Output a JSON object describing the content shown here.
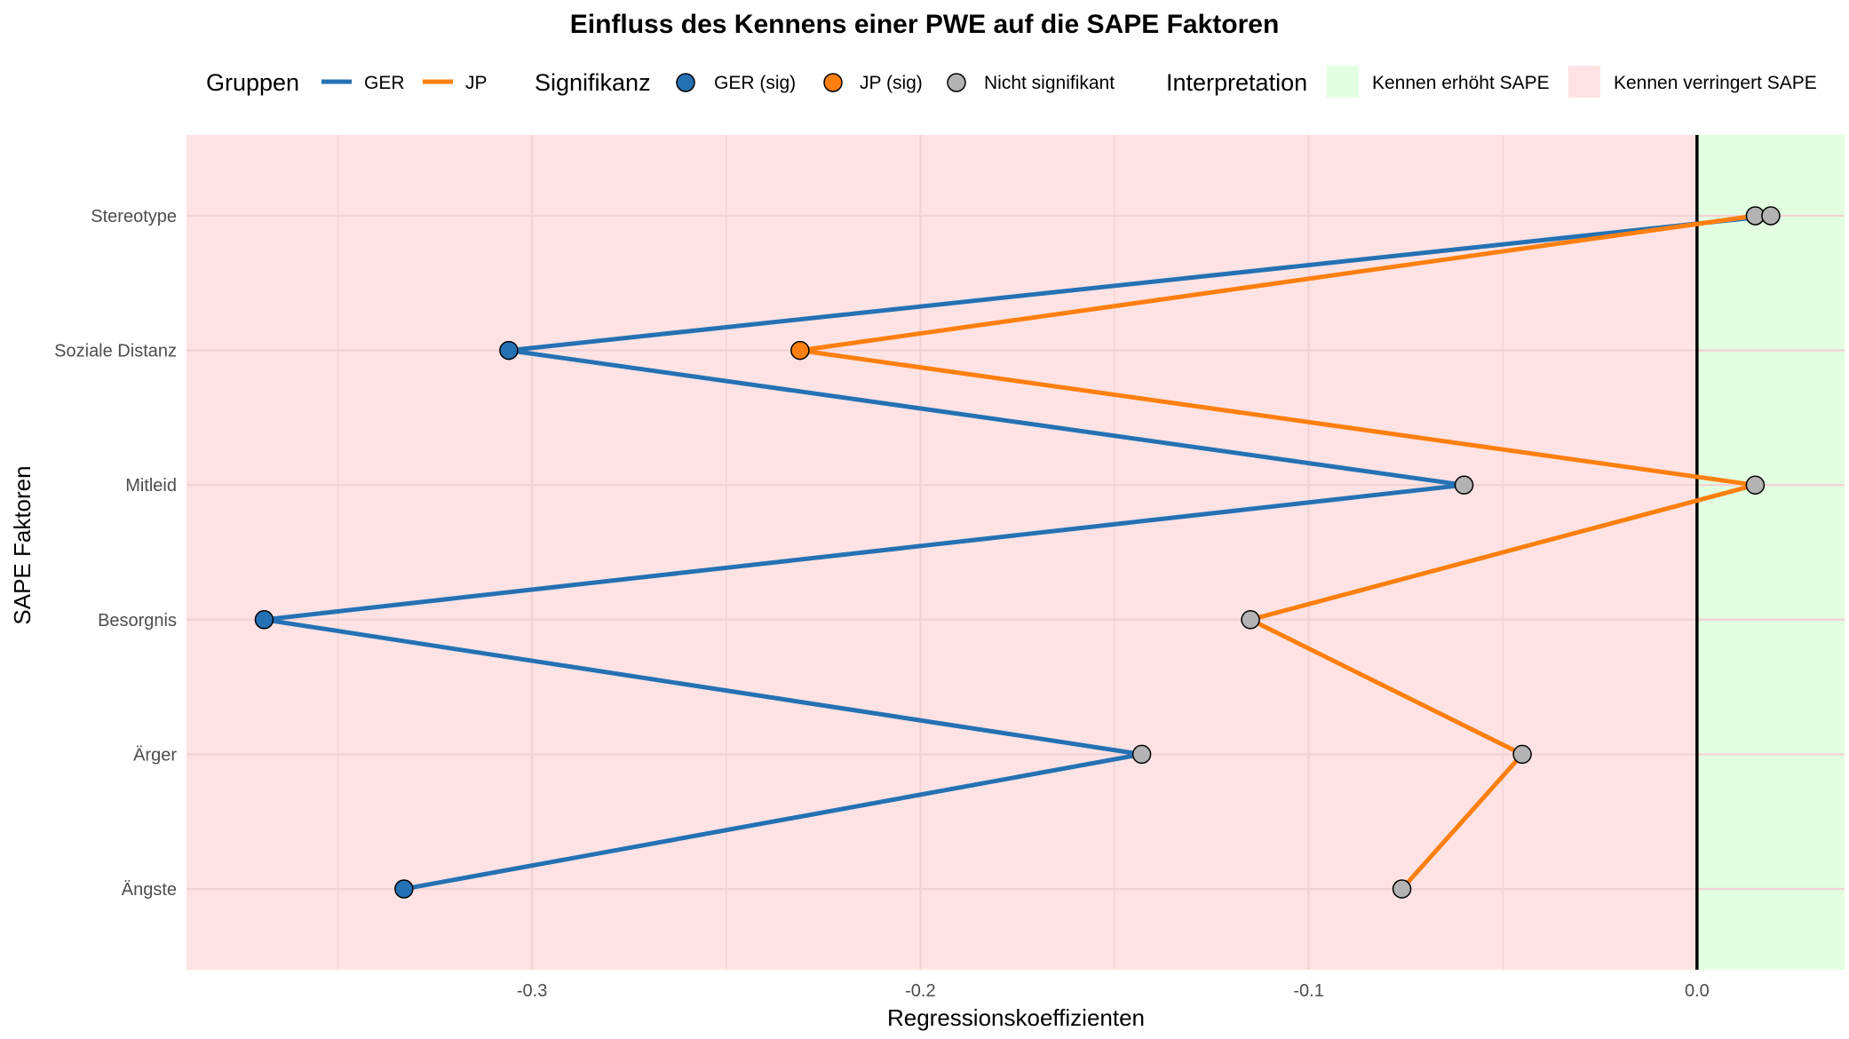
{
  "chart_data": {
    "type": "line",
    "title": "Einfluss des Kennens einer PWE auf die SAPE Faktoren",
    "xlabel": "Regressionskoeffizienten",
    "ylabel": "SAPE Faktoren",
    "xlim": [
      -0.389,
      0.038
    ],
    "x_ticks": [
      -0.3,
      -0.2,
      -0.1,
      0.0
    ],
    "x_tick_labels": [
      "-0.3",
      "-0.2",
      "-0.1",
      "0.0"
    ],
    "categories": [
      "Stereotype",
      "Soziale Distanz",
      "Mitleid",
      "Besorgnis",
      "Ärger",
      "Ängste"
    ],
    "grid": true,
    "reference_line_x": 0,
    "series": [
      {
        "name": "GER",
        "color": "#2471B4",
        "values": [
          0.019,
          -0.306,
          -0.06,
          -0.369,
          -0.143,
          -0.333
        ],
        "significant": [
          false,
          true,
          false,
          true,
          false,
          true
        ]
      },
      {
        "name": "JP",
        "color": "#FF7F0E",
        "values": [
          0.015,
          -0.231,
          0.015,
          -0.115,
          -0.045,
          -0.076
        ],
        "significant": [
          false,
          true,
          false,
          false,
          false,
          false
        ]
      }
    ],
    "legend": {
      "placement": "top",
      "groups_title": "Gruppen",
      "groups": [
        {
          "label": "GER",
          "color": "#2471B4"
        },
        {
          "label": "JP",
          "color": "#FF7F0E"
        }
      ],
      "significance_title": "Signifikanz",
      "significance": [
        {
          "label": "GER (sig)",
          "color": "#2471B4"
        },
        {
          "label": "JP (sig)",
          "color": "#FF7F0E"
        },
        {
          "label": "Nicht signifikant",
          "color": "#B3B3B3"
        }
      ],
      "interpretation_title": "Interpretation",
      "interpretation": [
        {
          "label": "Kennen erhöht SAPE",
          "color": "#E2FFE2"
        },
        {
          "label": "Kennen verringert SAPE",
          "color": "#FFE3E4"
        }
      ]
    },
    "regions": {
      "negative_color": "#FFE3E4",
      "positive_color": "#E2FFE2"
    },
    "nonsignificant_color": "#B3B3B3"
  }
}
